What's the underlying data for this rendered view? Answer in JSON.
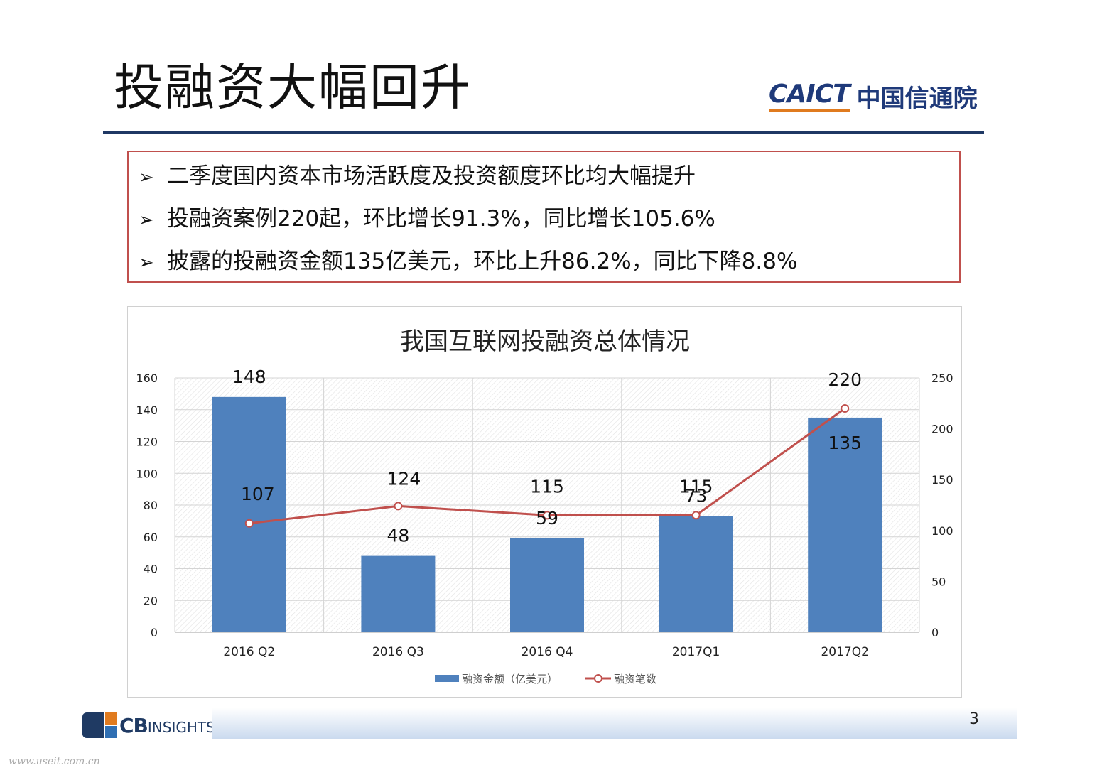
{
  "slide": {
    "title": "投融资大幅回升",
    "logo_en": "CAICT",
    "logo_cn": "中国信通院",
    "page_number": "3",
    "watermark": "www.useit.com.cn",
    "footer_logo_main": "CB",
    "footer_logo_small": "INSIGHTS"
  },
  "bullets": [
    "二季度国内资本市场活跃度及投资额度环比均大幅提升",
    "投融资案例220起，环比增长91.3%，同比增长105.6%",
    "披露的投融资金额135亿美元，环比上升86.2%，同比下降8.8%"
  ],
  "icons": {
    "bullet": "arrowhead-icon"
  },
  "chart_data": {
    "type": "bar",
    "title": "我国互联网投融资总体情况",
    "categories": [
      "2016 Q2",
      "2016 Q3",
      "2016 Q4",
      "2017Q1",
      "2017Q2"
    ],
    "series": [
      {
        "name": "融资金额（亿美元）",
        "type": "bar",
        "axis": "left",
        "values": [
          148,
          48,
          59,
          73,
          135
        ],
        "color": "#4f81bd"
      },
      {
        "name": "融资笔数",
        "type": "line",
        "axis": "right",
        "values": [
          107,
          124,
          115,
          115,
          220
        ],
        "color": "#c0504d"
      }
    ],
    "y_left": {
      "min": 0,
      "max": 160,
      "ticks": [
        0,
        20,
        40,
        60,
        80,
        100,
        120,
        140,
        160
      ]
    },
    "y_right": {
      "min": 0,
      "max": 250,
      "ticks": [
        0,
        50,
        100,
        150,
        200,
        250
      ]
    },
    "grid": true,
    "legend_position": "bottom"
  }
}
